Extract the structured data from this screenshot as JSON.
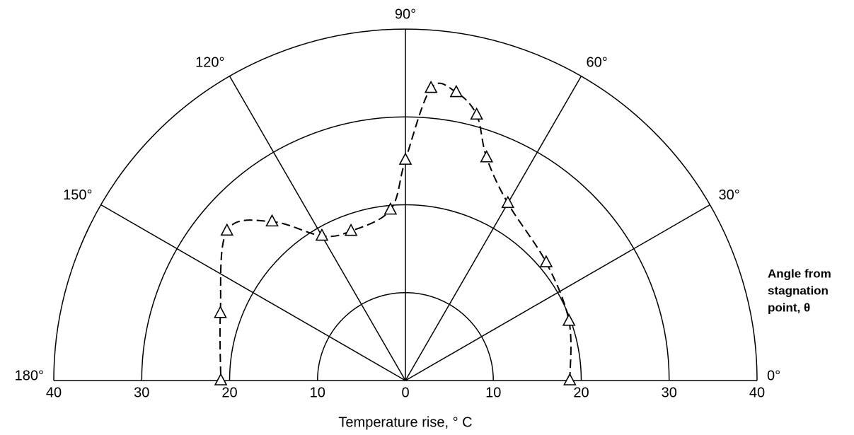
{
  "chart_data": {
    "type": "polar",
    "series": [
      {
        "marker": "triangle",
        "color": "#000000",
        "theta": [
          0,
          20,
          40,
          60,
          70,
          75,
          80,
          85,
          90,
          95,
          110,
          120,
          130,
          140,
          160,
          180
        ],
        "r": [
          18.7,
          19.8,
          20.9,
          23.3,
          27.0,
          31.3,
          33.3,
          33.4,
          25.1,
          19.5,
          18.1,
          19.0,
          23.6,
          26.5,
          22.4,
          21.0
        ]
      }
    ],
    "rlim": [
      0,
      40
    ],
    "rticks": [
      0,
      10,
      20,
      30,
      40
    ],
    "thetalim": [
      0,
      180
    ],
    "thetaticks": [
      {
        "value": 0,
        "label": "0°"
      },
      {
        "value": 30,
        "label": "30°"
      },
      {
        "value": 60,
        "label": "60°"
      },
      {
        "value": 90,
        "label": "90°"
      },
      {
        "value": 120,
        "label": "120°"
      },
      {
        "value": 150,
        "label": "150°"
      },
      {
        "value": 180,
        "label": "180°"
      }
    ],
    "xlabel": "Temperature rise, ° C",
    "theta_label": [
      "Angle from",
      "stagnation",
      "point, θ"
    ]
  }
}
